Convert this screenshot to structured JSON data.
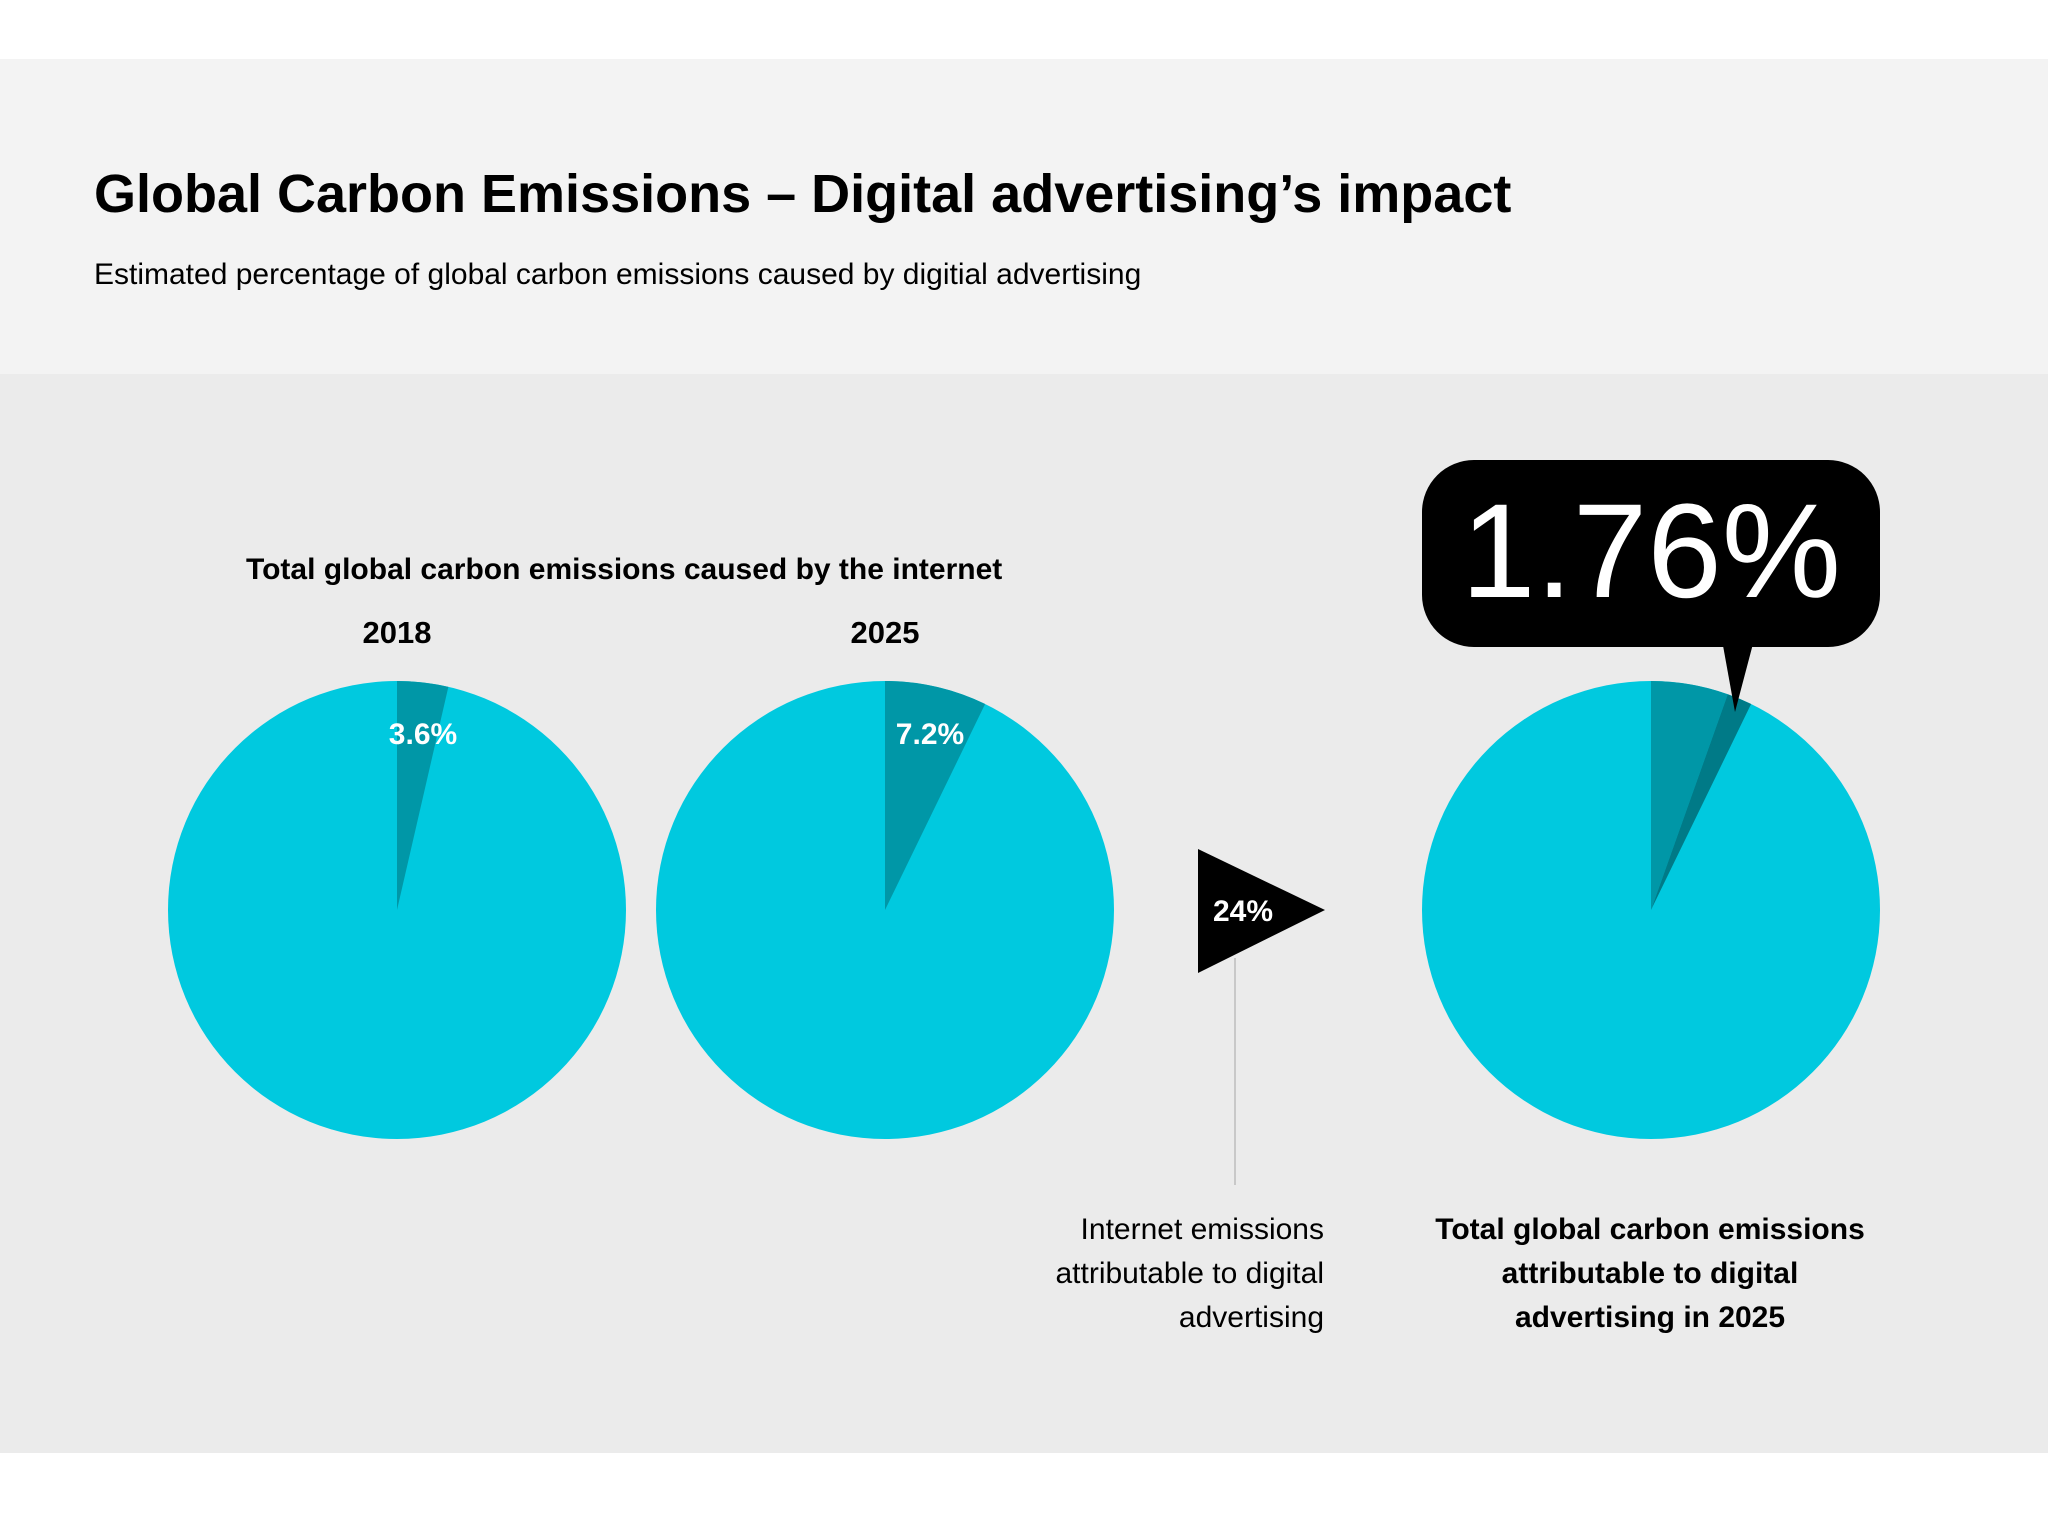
{
  "header": {
    "title": "Global Carbon Emissions – Digital advertising’s impact",
    "subtitle": "Estimated percentage of global carbon emissions caused by digitial advertising"
  },
  "colors": {
    "pie_base": "#00c9df",
    "pie_slice": "#0097a7",
    "pie_slice_dark": "#007a87",
    "callout": "#000000",
    "header_band": "#f3f3f3",
    "main_band": "#ebebeb"
  },
  "section_heading": "Total global carbon emissions caused by the internet",
  "arrow_label": "24%",
  "big_figure": "1.76%",
  "captions": {
    "internet_share": "Internet emissions attributable to digital advertising",
    "total_share": "Total global carbon emissions attributable to digital advertising in 2025"
  },
  "chart_data": [
    {
      "type": "pie",
      "title": "2018",
      "slices": [
        {
          "label": "3.6%",
          "value": 3.6
        },
        {
          "label": "",
          "value": 96.4
        }
      ]
    },
    {
      "type": "pie",
      "title": "2025",
      "slices": [
        {
          "label": "7.2%",
          "value": 7.2
        },
        {
          "label": "",
          "value": 92.8
        }
      ]
    },
    {
      "type": "pie",
      "title": "",
      "slices": [
        {
          "label": "1.76%",
          "value": 1.76
        },
        {
          "label": "",
          "value": 5.44
        },
        {
          "label": "",
          "value": 92.8
        }
      ]
    }
  ]
}
